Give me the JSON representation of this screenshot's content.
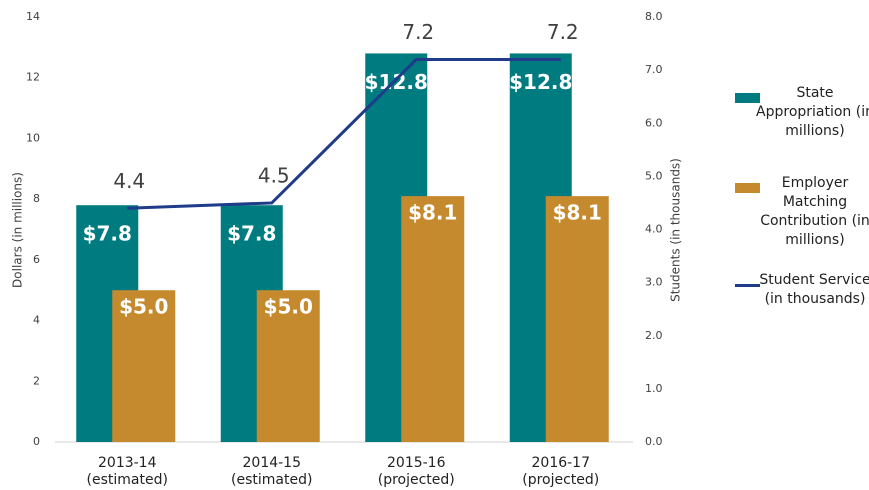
{
  "chart_data": {
    "type": "bar-line",
    "categories": [
      "2013-14 (estimated)",
      "2014-15 (estimated)",
      "2015-16 (projected)",
      "2016-17 (projected)"
    ],
    "ylabel": "Dollars (in millions)",
    "y2label": "Students (in thousands)",
    "ylim": [
      0,
      14
    ],
    "yticks": [
      0,
      2,
      4,
      6,
      8,
      10,
      12,
      14
    ],
    "y2lim": [
      0,
      8
    ],
    "y2ticks": [
      {
        "value": 0,
        "label": "0.0"
      },
      {
        "value": 1,
        "label": "1.0"
      },
      {
        "value": 2,
        "label": "2.0"
      },
      {
        "value": 3,
        "label": "3.0"
      },
      {
        "value": 4,
        "label": "4.0"
      },
      {
        "value": 5,
        "label": "5.0"
      },
      {
        "value": 6,
        "label": "6.0"
      },
      {
        "value": 7,
        "label": "7.0"
      },
      {
        "value": 8,
        "label": "8.0"
      }
    ],
    "series": [
      {
        "name": "State Appropriation (in millions)",
        "type": "bar",
        "color": "#007b80",
        "values": [
          7.8,
          7.8,
          12.8,
          12.8
        ],
        "value_labels": [
          "$7.8",
          "$7.8",
          "$12.8",
          "$12.8"
        ]
      },
      {
        "name": "Employer Matching Contribution (in millions)",
        "type": "bar",
        "color": "#c68a2e",
        "values": [
          5.0,
          5.0,
          8.1,
          8.1
        ],
        "value_labels": [
          "$5.0",
          "$5.0",
          "$8.1",
          "$8.1"
        ]
      },
      {
        "name": "Student Service (in thousands)",
        "type": "line",
        "axis": "y2",
        "color": "#1f3b8a",
        "values": [
          4.4,
          4.5,
          7.2,
          7.2
        ]
      }
    ],
    "legend": "right"
  }
}
